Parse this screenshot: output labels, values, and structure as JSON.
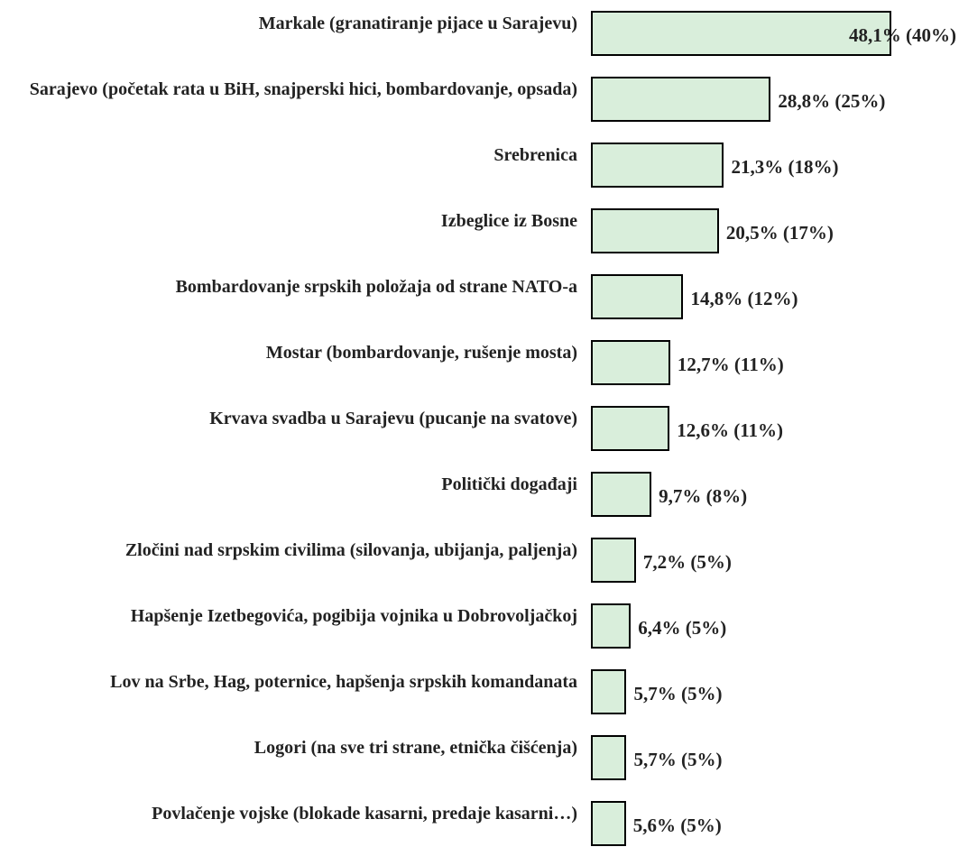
{
  "chart_data": {
    "type": "bar",
    "orientation": "horizontal",
    "color": "#d9eedb",
    "categories": [
      "Markale (granatiranje pijace u Sarajevu)",
      "Sarajevo (početak rata u BiH, snajperski hici, bombardovanje, opsada)",
      "Srebrenica",
      "Izbeglice iz Bosne",
      "Bombardovanje srpskih položaja od strane NATO-a",
      "Mostar (bombardovanje, rušenje mosta)",
      "Krvava svadba u Sarajevu (pucanje na svatove)",
      "Politički događaji",
      "Zločini nad srpskim civilima (silovanja, ubijanja, paljenja)",
      "Hapšenje Izetbegovića, pogibija vojnika u Dobrovoljačkoj",
      "Lov na Srbe, Hag, poternice, hapšenja srpskih komandanata",
      "Logori (na sve tri strane, etnička čišćenja)",
      "Povlačenje vojske (blokade kasarni, predaje kasarni…)"
    ],
    "values": [
      48.1,
      28.8,
      21.3,
      20.5,
      14.8,
      12.7,
      12.6,
      9.7,
      7.2,
      6.4,
      5.7,
      5.7,
      5.6
    ],
    "value_labels": [
      "48,1% (40%)",
      "28,8% (25%)",
      "21,3% (18%)",
      "20,5% (17%)",
      "14,8% (12%)",
      "12,7% (11%)",
      "12,6% (11%)",
      "9,7% (8%)",
      "7,2% (5%)",
      "6,4% (5%)",
      "5,7% (5%)",
      "5,7% (5%)",
      "5,6% (5%)"
    ]
  }
}
